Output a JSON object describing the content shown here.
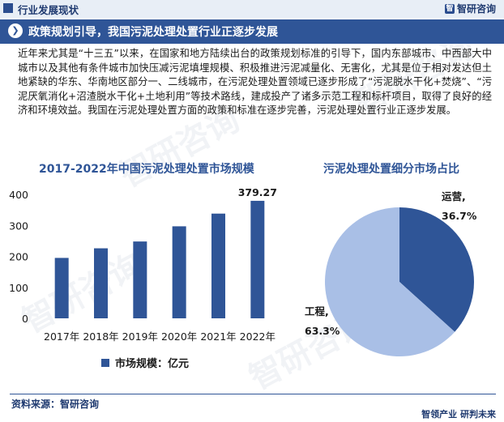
{
  "header": {
    "section_label": "行业发展现状",
    "logo_mark": "智",
    "logo_text": "智研咨询"
  },
  "banner": {
    "title": "政策规划引导，我国污泥处理处置行业正逐步发展"
  },
  "body_text": "近年来尤其是“十三五”以来，在国家和地方陆续出台的政策规划标准的引导下，国内东部城市、中西部大中城市以及其他有条件城市加快压减污泥填埋规模、积极推进污泥减量化、无害化，尤其是位于相对发达但土地紧缺的华东、华南地区部分一、二线城市，在污泥处理处置领域已逐步形成了“污泥脱水干化+焚烧”、“污泥厌氧消化+沼渣脱水干化+土地利用”等技术路线，建成投产了诸多示范工程和标杆项目，取得了良好的经济和环境效益。我国在污泥处理处置方面的政策和标准在逐步完善，污泥处理处置行业正逐步发展。",
  "footer": {
    "source": "资料来源：智研咨询",
    "slogan": "智领产业  研判未来"
  },
  "watermark": "智研咨询",
  "colors": {
    "bar": "#2f5597",
    "pie_operation": "#2f5597",
    "pie_engineering": "#a9bfe6",
    "accent": "#2f5597"
  },
  "chart_data": [
    {
      "type": "bar",
      "title": "2017-2022年中国污泥处理处置市场规模",
      "categories": [
        "2017年",
        "2018年",
        "2019年",
        "2020年",
        "2021年",
        "2022年"
      ],
      "series": [
        {
          "name": "市场规模：亿元",
          "values": [
            195,
            226,
            248,
            297,
            338,
            379.27
          ]
        }
      ],
      "data_labels": {
        "2022年": "379.27"
      },
      "yticks": [
        "0",
        "100",
        "200",
        "300",
        "400"
      ],
      "ylim": [
        0,
        400
      ],
      "grid": false,
      "legend": "bottom"
    },
    {
      "type": "pie",
      "title": "污泥处理处置细分市场占比",
      "slices": [
        {
          "label": "运营,",
          "pct_text": "36.7%",
          "value": 36.7
        },
        {
          "label": "工程,",
          "pct_text": "63.3%",
          "value": 63.3
        }
      ]
    }
  ]
}
